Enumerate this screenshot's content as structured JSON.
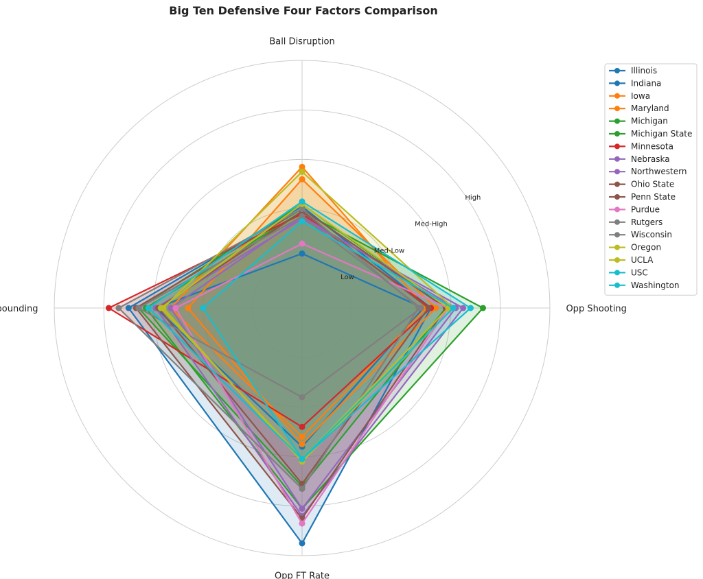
{
  "chart_data": {
    "type": "radar",
    "title": "Big Ten Defensive Four Factors Comparison",
    "axes": [
      "Ball Disruption",
      "Opp Shooting",
      "Opp FT Rate",
      "Def Rebounding"
    ],
    "rlim": [
      0,
      5
    ],
    "ring_labels": [
      "Low",
      "Med-Low",
      "Med-High",
      "High"
    ],
    "grid": true,
    "legend_position": "upper-right",
    "series": [
      {
        "name": "Illinois",
        "color": "#1f77b4",
        "values": [
          2.05,
          2.6,
          4.75,
          3.5
        ]
      },
      {
        "name": "Indiana",
        "color": "#1f77b4",
        "values": [
          1.1,
          2.45,
          2.8,
          2.95
        ]
      },
      {
        "name": "Iowa",
        "color": "#ff7f0e",
        "values": [
          2.6,
          2.7,
          2.75,
          2.3
        ]
      },
      {
        "name": "Maryland",
        "color": "#ff7f0e",
        "values": [
          2.85,
          2.5,
          2.6,
          2.65
        ]
      },
      {
        "name": "Michigan",
        "color": "#2ca02c",
        "values": [
          1.95,
          3.65,
          4.05,
          3.15
        ]
      },
      {
        "name": "Michigan State",
        "color": "#2ca02c",
        "values": [
          2.1,
          2.9,
          3.6,
          3.3
        ]
      },
      {
        "name": "Minnesota",
        "color": "#d62728",
        "values": [
          1.9,
          2.6,
          2.4,
          3.9
        ]
      },
      {
        "name": "Nebraska",
        "color": "#9467bd",
        "values": [
          1.8,
          3.25,
          4.2,
          2.95
        ]
      },
      {
        "name": "Northwestern",
        "color": "#9467bd",
        "values": [
          1.85,
          3.1,
          4.05,
          2.65
        ]
      },
      {
        "name": "Ohio State",
        "color": "#8c564b",
        "values": [
          2.0,
          2.9,
          4.25,
          3.35
        ]
      },
      {
        "name": "Penn State",
        "color": "#8c564b",
        "values": [
          1.95,
          2.55,
          3.55,
          2.9
        ]
      },
      {
        "name": "Purdue",
        "color": "#e377c2",
        "values": [
          1.3,
          2.95,
          4.35,
          2.55
        ]
      },
      {
        "name": "Rutgers",
        "color": "#7f7f7f",
        "values": [
          2.0,
          2.35,
          3.65,
          3.7
        ]
      },
      {
        "name": "Wisconsin",
        "color": "#7f7f7f",
        "values": [
          1.85,
          2.4,
          1.8,
          3.3
        ]
      },
      {
        "name": "Oregon",
        "color": "#bcbd22",
        "values": [
          2.75,
          3.05,
          3.1,
          2.8
        ]
      },
      {
        "name": "UCLA",
        "color": "#bcbd22",
        "values": [
          2.1,
          2.95,
          3.05,
          2.85
        ]
      },
      {
        "name": "USC",
        "color": "#17becf",
        "values": [
          2.15,
          3.4,
          3.05,
          3.1
        ]
      },
      {
        "name": "Washington",
        "color": "#17becf",
        "values": [
          1.75,
          3.05,
          3.05,
          2.0
        ]
      }
    ]
  }
}
